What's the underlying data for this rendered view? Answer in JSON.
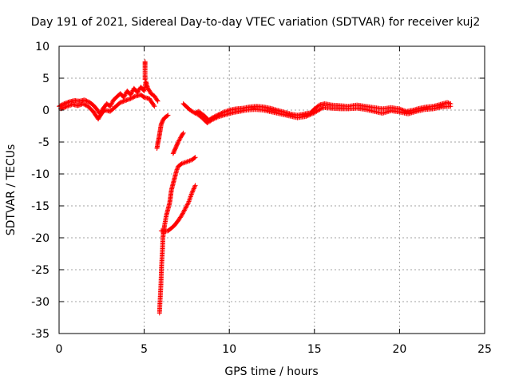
{
  "chart_data": {
    "type": "scatter",
    "title": "Day 191 of 2021, Sidereal Day-to-day VTEC variation (SDTVAR) for receiver kuj2",
    "xlabel": "GPS time / hours",
    "ylabel": "SDTVAR / TECUs",
    "xlim": [
      0,
      25
    ],
    "ylim": [
      -35,
      10
    ],
    "xticks": [
      0,
      5,
      10,
      15,
      20,
      25
    ],
    "yticks": [
      10,
      5,
      0,
      -5,
      -10,
      -15,
      -20,
      -25,
      -30,
      -35
    ],
    "xtick_labels": [
      "0",
      "5",
      "10",
      "15",
      "20",
      "25"
    ],
    "ytick_labels": [
      "10",
      "5",
      "0",
      "-5",
      "-10",
      "-15",
      "-20",
      "-25",
      "-30",
      "-35"
    ],
    "grid": true,
    "marker": "plus",
    "color": "#ff0000",
    "series": [
      {
        "name": "main-trace",
        "points": [
          [
            0.0,
            0.6
          ],
          [
            0.3,
            1.0
          ],
          [
            0.6,
            1.3
          ],
          [
            0.9,
            1.5
          ],
          [
            1.2,
            1.4
          ],
          [
            1.5,
            1.6
          ],
          [
            1.8,
            1.2
          ],
          [
            2.0,
            0.8
          ],
          [
            2.2,
            0.2
          ],
          [
            2.4,
            -0.6
          ],
          [
            2.6,
            0.3
          ],
          [
            2.8,
            1.0
          ],
          [
            3.0,
            0.6
          ],
          [
            3.2,
            1.6
          ],
          [
            3.4,
            2.1
          ],
          [
            3.6,
            2.6
          ],
          [
            3.8,
            2.0
          ],
          [
            4.0,
            3.0
          ],
          [
            4.2,
            2.4
          ],
          [
            4.4,
            3.4
          ],
          [
            4.6,
            2.8
          ],
          [
            4.8,
            3.6
          ],
          [
            5.0,
            3.0
          ],
          [
            5.1,
            4.5
          ],
          [
            5.2,
            3.5
          ],
          [
            5.4,
            2.6
          ],
          [
            5.6,
            2.2
          ],
          [
            5.8,
            1.4
          ]
        ]
      },
      {
        "name": "main-trace-lower",
        "points": [
          [
            0.1,
            0.2
          ],
          [
            0.4,
            0.5
          ],
          [
            0.8,
            0.9
          ],
          [
            1.1,
            0.7
          ],
          [
            1.4,
            1.0
          ],
          [
            1.7,
            0.6
          ],
          [
            2.0,
            -0.2
          ],
          [
            2.3,
            -1.4
          ],
          [
            2.5,
            -0.5
          ],
          [
            2.7,
            0.0
          ],
          [
            3.0,
            -0.2
          ],
          [
            3.3,
            0.5
          ],
          [
            3.6,
            1.2
          ],
          [
            3.9,
            1.5
          ],
          [
            4.2,
            1.8
          ],
          [
            4.5,
            2.2
          ],
          [
            4.8,
            2.4
          ],
          [
            5.0,
            2.0
          ],
          [
            5.3,
            1.8
          ],
          [
            5.6,
            0.6
          ]
        ]
      },
      {
        "name": "spike",
        "points": [
          [
            5.05,
            7.6
          ],
          [
            5.05,
            7.0
          ],
          [
            5.05,
            6.3
          ],
          [
            5.05,
            5.5
          ],
          [
            5.05,
            4.8
          ]
        ]
      },
      {
        "name": "drop-branch-steep",
        "points": [
          [
            5.9,
            -31.8
          ],
          [
            5.92,
            -30.5
          ],
          [
            5.95,
            -29.0
          ],
          [
            5.98,
            -27.5
          ],
          [
            6.0,
            -26.0
          ],
          [
            6.02,
            -24.5
          ],
          [
            6.05,
            -23.0
          ],
          [
            6.08,
            -21.5
          ],
          [
            6.1,
            -20.0
          ],
          [
            6.15,
            -18.8
          ],
          [
            6.2,
            -18.0
          ],
          [
            6.3,
            -16.5
          ],
          [
            6.4,
            -15.5
          ],
          [
            6.5,
            -14.5
          ],
          [
            6.55,
            -13.5
          ],
          [
            6.6,
            -12.5
          ],
          [
            6.7,
            -11.5
          ],
          [
            6.8,
            -10.5
          ],
          [
            6.9,
            -9.5
          ],
          [
            7.0,
            -8.8
          ],
          [
            7.2,
            -8.4
          ],
          [
            7.4,
            -8.2
          ],
          [
            7.6,
            -8.0
          ],
          [
            7.8,
            -7.8
          ],
          [
            8.0,
            -7.4
          ]
        ]
      },
      {
        "name": "drop-branch-lower",
        "points": [
          [
            6.0,
            -18.9
          ],
          [
            6.2,
            -19.0
          ],
          [
            6.4,
            -18.9
          ],
          [
            6.6,
            -18.5
          ],
          [
            6.8,
            -18.0
          ],
          [
            7.0,
            -17.3
          ],
          [
            7.2,
            -16.5
          ],
          [
            7.4,
            -15.5
          ],
          [
            7.6,
            -14.5
          ],
          [
            7.8,
            -13.0
          ],
          [
            8.0,
            -11.8
          ]
        ]
      },
      {
        "name": "drop-branch-upper",
        "points": [
          [
            5.75,
            -6.0
          ],
          [
            5.8,
            -5.2
          ],
          [
            5.85,
            -4.6
          ],
          [
            5.9,
            -3.8
          ],
          [
            5.95,
            -3.0
          ],
          [
            6.0,
            -2.2
          ],
          [
            6.1,
            -1.6
          ],
          [
            6.2,
            -1.2
          ],
          [
            6.3,
            -1.0
          ],
          [
            6.4,
            -0.8
          ]
        ]
      },
      {
        "name": "rising-segment",
        "points": [
          [
            6.7,
            -6.8
          ],
          [
            6.8,
            -6.2
          ],
          [
            6.9,
            -5.6
          ],
          [
            7.0,
            -5.0
          ],
          [
            7.1,
            -4.5
          ],
          [
            7.2,
            -4.0
          ],
          [
            7.3,
            -3.6
          ]
        ]
      },
      {
        "name": "recovery-trace",
        "points": [
          [
            7.3,
            1.0
          ],
          [
            7.5,
            0.5
          ],
          [
            7.7,
            0.0
          ],
          [
            8.0,
            -0.5
          ],
          [
            8.2,
            -0.2
          ],
          [
            8.5,
            -0.8
          ],
          [
            8.8,
            -1.6
          ],
          [
            9.0,
            -1.2
          ],
          [
            9.3,
            -0.8
          ],
          [
            9.6,
            -0.4
          ],
          [
            10.0,
            0.0
          ],
          [
            10.4,
            0.2
          ],
          [
            10.8,
            0.3
          ],
          [
            11.2,
            0.5
          ],
          [
            11.6,
            0.6
          ],
          [
            12.0,
            0.5
          ],
          [
            12.4,
            0.3
          ],
          [
            12.8,
            0.0
          ],
          [
            13.2,
            -0.3
          ],
          [
            13.6,
            -0.6
          ],
          [
            14.0,
            -0.8
          ],
          [
            14.4,
            -0.6
          ],
          [
            14.8,
            -0.4
          ],
          [
            15.0,
            0.2
          ],
          [
            15.3,
            0.8
          ],
          [
            15.6,
            1.0
          ],
          [
            16.0,
            0.8
          ],
          [
            16.5,
            0.7
          ],
          [
            17.0,
            0.6
          ],
          [
            17.5,
            0.8
          ],
          [
            18.0,
            0.6
          ],
          [
            18.5,
            0.4
          ],
          [
            19.0,
            0.2
          ],
          [
            19.5,
            0.4
          ],
          [
            20.0,
            0.2
          ],
          [
            20.4,
            -0.2
          ],
          [
            20.8,
            0.0
          ],
          [
            21.2,
            0.3
          ],
          [
            21.6,
            0.5
          ],
          [
            22.0,
            0.6
          ],
          [
            22.4,
            0.9
          ],
          [
            22.8,
            1.2
          ],
          [
            23.0,
            1.0
          ]
        ]
      },
      {
        "name": "recovery-trace-lower",
        "points": [
          [
            8.1,
            -0.6
          ],
          [
            8.4,
            -1.2
          ],
          [
            8.7,
            -2.0
          ],
          [
            9.0,
            -1.5
          ],
          [
            9.4,
            -1.0
          ],
          [
            9.8,
            -0.7
          ],
          [
            10.2,
            -0.4
          ],
          [
            10.6,
            -0.2
          ],
          [
            11.0,
            0.0
          ],
          [
            11.5,
            0.1
          ],
          [
            12.0,
            0.0
          ],
          [
            12.5,
            -0.3
          ],
          [
            13.0,
            -0.6
          ],
          [
            13.5,
            -0.9
          ],
          [
            14.0,
            -1.2
          ],
          [
            14.5,
            -1.0
          ],
          [
            15.0,
            -0.4
          ],
          [
            15.5,
            0.4
          ],
          [
            16.0,
            0.3
          ],
          [
            16.5,
            0.2
          ],
          [
            17.0,
            0.2
          ],
          [
            17.5,
            0.3
          ],
          [
            18.0,
            0.1
          ],
          [
            18.5,
            -0.2
          ],
          [
            19.0,
            -0.5
          ],
          [
            19.5,
            -0.1
          ],
          [
            20.0,
            -0.3
          ],
          [
            20.5,
            -0.6
          ],
          [
            21.0,
            -0.2
          ],
          [
            21.5,
            0.1
          ],
          [
            22.0,
            0.2
          ],
          [
            22.5,
            0.5
          ],
          [
            23.0,
            0.6
          ]
        ]
      }
    ]
  }
}
